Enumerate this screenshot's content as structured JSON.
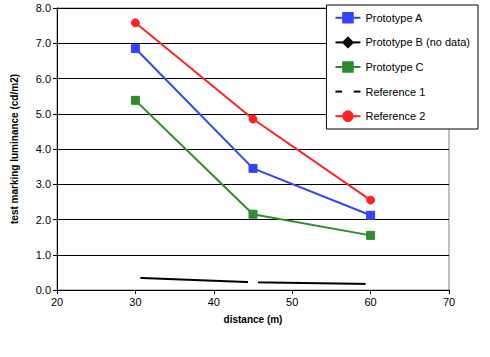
{
  "chart_data": {
    "type": "line",
    "x_label": "distance (m)",
    "y_label": "test marking luminance (cd/m2)",
    "x": [
      30,
      45,
      60
    ],
    "series": [
      {
        "name": "Prototype A",
        "color": "#3344ff",
        "marker": "square",
        "values": [
          6.85,
          3.45,
          2.12
        ]
      },
      {
        "name": "Prototype B (no data)",
        "color": "#000000",
        "marker": "diamond",
        "values": [
          null,
          null,
          null
        ]
      },
      {
        "name": "Prototype C",
        "color": "#2e8b2e",
        "marker": "square",
        "values": [
          5.38,
          2.15,
          1.55
        ]
      },
      {
        "name": "Reference 1",
        "color": "#000000",
        "marker": "open_square",
        "values": [
          0.35,
          0.22,
          0.17
        ]
      },
      {
        "name": "Reference 2",
        "color": "#ff2222",
        "marker": "circle",
        "values": [
          7.58,
          4.85,
          2.55
        ]
      }
    ],
    "xlim": [
      20,
      70
    ],
    "xticks": [
      20,
      30,
      40,
      50,
      60,
      70
    ],
    "ylim": [
      0,
      8
    ],
    "yticks": [
      {
        "value": 0,
        "label": "0.0"
      },
      {
        "value": 1,
        "label": "1.0"
      },
      {
        "value": 2,
        "label": "2.0"
      },
      {
        "value": 3,
        "label": "3.0"
      },
      {
        "value": 4,
        "label": "4.0"
      },
      {
        "value": 5,
        "label": "5.0"
      },
      {
        "value": 6,
        "label": "6.0"
      },
      {
        "value": 7,
        "label": "7.0"
      },
      {
        "value": 8,
        "label": "8.0"
      }
    ],
    "grid": true,
    "legend": "top right"
  }
}
